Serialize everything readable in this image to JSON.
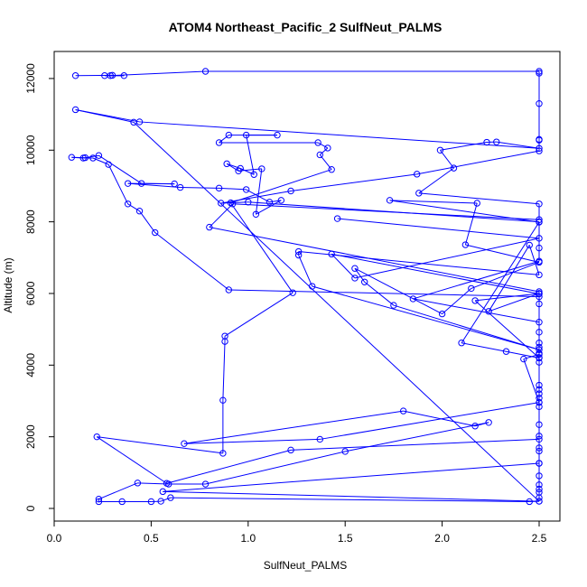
{
  "chart_data": {
    "type": "line",
    "title": "ATOM4 Northeast_Pacific_2 SulfNeut_PALMS",
    "xlabel": "SulfNeut_PALMS",
    "ylabel": "Altitude (m)",
    "xlim": [
      0,
      2.5
    ],
    "ylim": [
      0,
      12200
    ],
    "x_ticks": [
      "0.0",
      "0.5",
      "1.0",
      "1.5",
      "2.0",
      "2.5"
    ],
    "y_ticks": [
      "0",
      "2000",
      "4000",
      "6000",
      "8000",
      "10000",
      "12000"
    ],
    "series_color": "#0000ff",
    "marker": "open-circle",
    "points": [
      [
        0.11,
        12080
      ],
      [
        0.3,
        12090
      ],
      [
        0.26,
        12080
      ],
      [
        0.36,
        12080
      ],
      [
        0.29,
        12080
      ],
      [
        0.78,
        12200
      ],
      [
        2.5,
        12200
      ],
      [
        2.5,
        12150
      ],
      [
        2.5,
        11300
      ],
      [
        2.5,
        10300
      ],
      [
        2.5,
        10280
      ],
      [
        2.5,
        9980
      ],
      [
        1.87,
        9330
      ],
      [
        1.22,
        8860
      ],
      [
        0.86,
        8520
      ],
      [
        1.0,
        8550
      ],
      [
        2.5,
        8000
      ],
      [
        2.5,
        7270
      ],
      [
        2.5,
        6900
      ],
      [
        1.85,
        5850
      ],
      [
        2.5,
        5200
      ],
      [
        2.5,
        4920
      ],
      [
        2.5,
        4620
      ],
      [
        2.5,
        4500
      ],
      [
        2.5,
        4330
      ],
      [
        2.5,
        4210
      ],
      [
        2.5,
        4080
      ],
      [
        2.5,
        3440
      ],
      [
        2.5,
        3320
      ],
      [
        2.5,
        3200
      ],
      [
        2.5,
        3080
      ],
      [
        2.5,
        2960
      ],
      [
        2.5,
        2840
      ],
      [
        2.5,
        2340
      ],
      [
        2.5,
        2020
      ],
      [
        2.5,
        1690
      ],
      [
        2.5,
        1600
      ],
      [
        2.5,
        1260
      ],
      [
        2.5,
        910
      ],
      [
        2.5,
        660
      ],
      [
        2.5,
        540
      ],
      [
        2.5,
        450
      ],
      [
        2.5,
        300
      ],
      [
        2.5,
        200
      ],
      [
        2.45,
        190
      ],
      [
        0.6,
        300
      ],
      [
        0.55,
        200
      ],
      [
        0.5,
        190
      ],
      [
        0.35,
        190
      ],
      [
        0.23,
        190
      ],
      [
        0.23,
        260
      ],
      [
        0.43,
        710
      ],
      [
        0.59,
        680
      ],
      [
        0.78,
        680
      ],
      [
        1.5,
        1590
      ],
      [
        2.24,
        2400
      ],
      [
        2.17,
        2300
      ],
      [
        1.8,
        2720
      ],
      [
        0.67,
        1810
      ],
      [
        1.37,
        1930
      ],
      [
        2.5,
        2960
      ],
      [
        2.42,
        4170
      ],
      [
        2.5,
        4300
      ],
      [
        2.5,
        5710
      ],
      [
        2.5,
        6000
      ],
      [
        2.17,
        5800
      ],
      [
        2.5,
        4200
      ],
      [
        2.33,
        4380
      ],
      [
        2.1,
        4620
      ],
      [
        2.5,
        7990
      ],
      [
        1.73,
        8600
      ],
      [
        2.18,
        8520
      ],
      [
        2.12,
        7360
      ],
      [
        2.5,
        6870
      ],
      [
        2.15,
        6140
      ],
      [
        2.0,
        5430
      ],
      [
        1.55,
        6700
      ],
      [
        1.6,
        6320
      ],
      [
        1.75,
        5670
      ],
      [
        2.5,
        4430
      ],
      [
        1.33,
        6200
      ],
      [
        1.26,
        7070
      ],
      [
        1.26,
        7170
      ],
      [
        2.5,
        6520
      ],
      [
        2.45,
        7350
      ],
      [
        2.24,
        5500
      ],
      [
        2.5,
        6000
      ],
      [
        2.5,
        5910
      ],
      [
        0.9,
        6100
      ],
      [
        0.52,
        7700
      ],
      [
        0.44,
        8300
      ],
      [
        0.38,
        8500
      ],
      [
        0.28,
        9600
      ],
      [
        0.2,
        9780
      ],
      [
        0.15,
        9780
      ],
      [
        0.09,
        9800
      ],
      [
        0.16,
        9790
      ],
      [
        0.23,
        9850
      ],
      [
        0.45,
        9070
      ],
      [
        0.62,
        9060
      ],
      [
        0.38,
        9070
      ],
      [
        0.65,
        8960
      ],
      [
        0.85,
        8940
      ],
      [
        0.99,
        8900
      ],
      [
        1.11,
        8550
      ],
      [
        1.17,
        8600
      ],
      [
        1.04,
        8210
      ],
      [
        1.07,
        9480
      ],
      [
        0.95,
        9420
      ],
      [
        0.89,
        9620
      ],
      [
        0.96,
        9490
      ],
      [
        1.03,
        9320
      ],
      [
        0.99,
        10420
      ],
      [
        1.15,
        10420
      ],
      [
        0.9,
        10420
      ],
      [
        0.85,
        10210
      ],
      [
        1.36,
        10210
      ],
      [
        1.41,
        10060
      ],
      [
        1.37,
        9870
      ],
      [
        1.43,
        9460
      ],
      [
        0.91,
        8530
      ],
      [
        1.23,
        6020
      ],
      [
        0.88,
        4810
      ],
      [
        0.88,
        4660
      ],
      [
        0.87,
        3020
      ],
      [
        0.87,
        1540
      ],
      [
        0.22,
        2000
      ],
      [
        0.58,
        700
      ],
      [
        1.22,
        1630
      ],
      [
        2.5,
        1930
      ],
      [
        2.5,
        1260
      ],
      [
        0.56,
        470
      ],
      [
        2.5,
        200
      ],
      [
        0.41,
        10780
      ],
      [
        0.11,
        11130
      ],
      [
        0.44,
        10790
      ],
      [
        2.5,
        10050
      ],
      [
        2.28,
        10230
      ],
      [
        2.23,
        10220
      ],
      [
        1.99,
        10000
      ],
      [
        2.06,
        9500
      ],
      [
        1.88,
        8800
      ],
      [
        2.5,
        8500
      ],
      [
        2.5,
        8060
      ],
      [
        0.92,
        8500
      ],
      [
        0.8,
        7850
      ],
      [
        2.5,
        6050
      ],
      [
        2.5,
        5990
      ],
      [
        1.43,
        7100
      ],
      [
        1.55,
        6430
      ],
      [
        2.5,
        7540
      ],
      [
        1.46,
        8090
      ]
    ]
  }
}
